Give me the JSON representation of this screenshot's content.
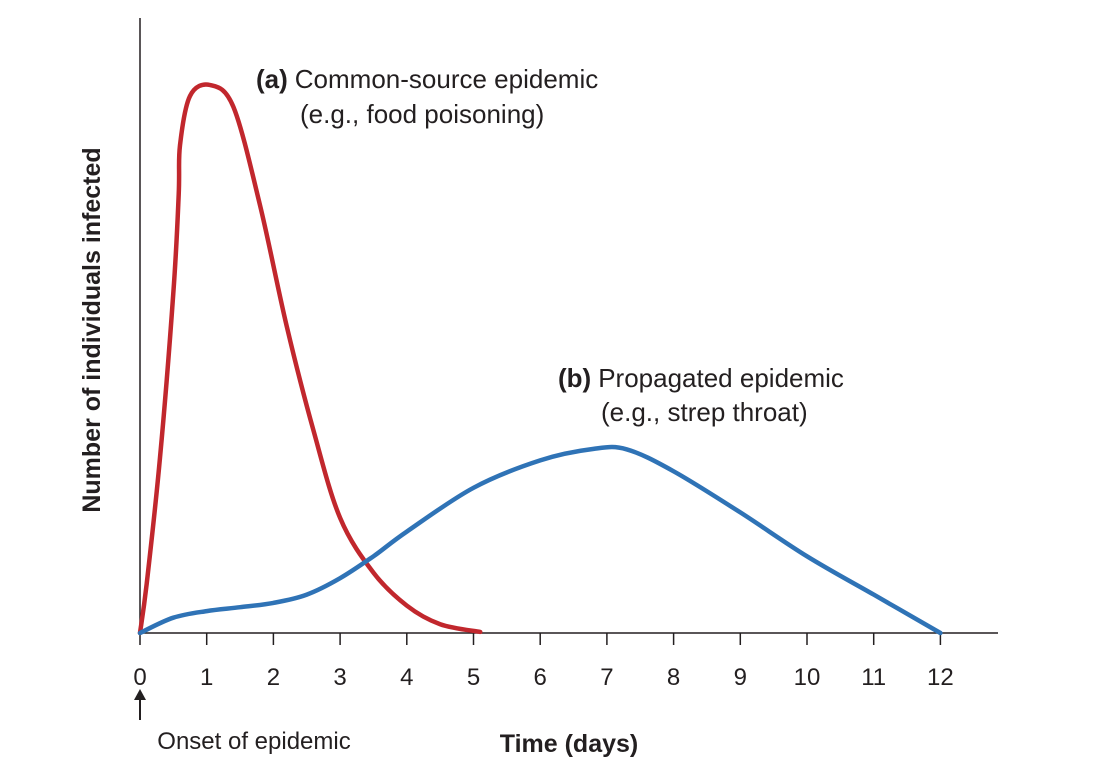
{
  "chart_data": {
    "type": "line",
    "title": "",
    "xlabel": "Time (days)",
    "ylabel": "Number of individuals infected",
    "xlim": [
      0,
      12.8
    ],
    "ylim": [
      0,
      100
    ],
    "x_ticks": [
      "0",
      "1",
      "2",
      "3",
      "4",
      "5",
      "6",
      "7",
      "8",
      "9",
      "10",
      "11",
      "12"
    ],
    "y_ticks": [],
    "grid": false,
    "legend": "none",
    "series": [
      {
        "key": "a",
        "label": "(a)",
        "name": "Common-source epidemic",
        "note": "(e.g., food poisoning)",
        "color": "#c1272d",
        "points": [
          [
            0,
            0
          ],
          [
            0.1,
            9
          ],
          [
            0.3,
            32
          ],
          [
            0.5,
            62
          ],
          [
            0.58,
            80
          ],
          [
            0.6,
            89
          ],
          [
            0.75,
            98
          ],
          [
            1.05,
            100
          ],
          [
            1.4,
            96
          ],
          [
            1.8,
            78
          ],
          [
            2.2,
            56
          ],
          [
            2.6,
            37
          ],
          [
            3.0,
            21
          ],
          [
            3.5,
            11
          ],
          [
            4.0,
            5
          ],
          [
            4.5,
            1.6
          ],
          [
            5.1,
            0.2
          ]
        ]
      },
      {
        "key": "b",
        "label": "(b)",
        "name": "Propagated epidemic",
        "note": "(e.g., strep throat)",
        "color": "#2f73b6",
        "points": [
          [
            0,
            0
          ],
          [
            0.5,
            2.8
          ],
          [
            1,
            4
          ],
          [
            1.5,
            4.7
          ],
          [
            2,
            5.5
          ],
          [
            2.5,
            7
          ],
          [
            3,
            10
          ],
          [
            3.5,
            14
          ],
          [
            4,
            18.5
          ],
          [
            5,
            26.5
          ],
          [
            6,
            31.5
          ],
          [
            6.8,
            33.6
          ],
          [
            7.3,
            33.5
          ],
          [
            8,
            29.5
          ],
          [
            9,
            22
          ],
          [
            10,
            14
          ],
          [
            11,
            7
          ],
          [
            12,
            0
          ]
        ]
      }
    ],
    "annotations": [
      {
        "text": "Onset of epidemic",
        "x": 0,
        "marker": "arrow-up"
      }
    ]
  }
}
